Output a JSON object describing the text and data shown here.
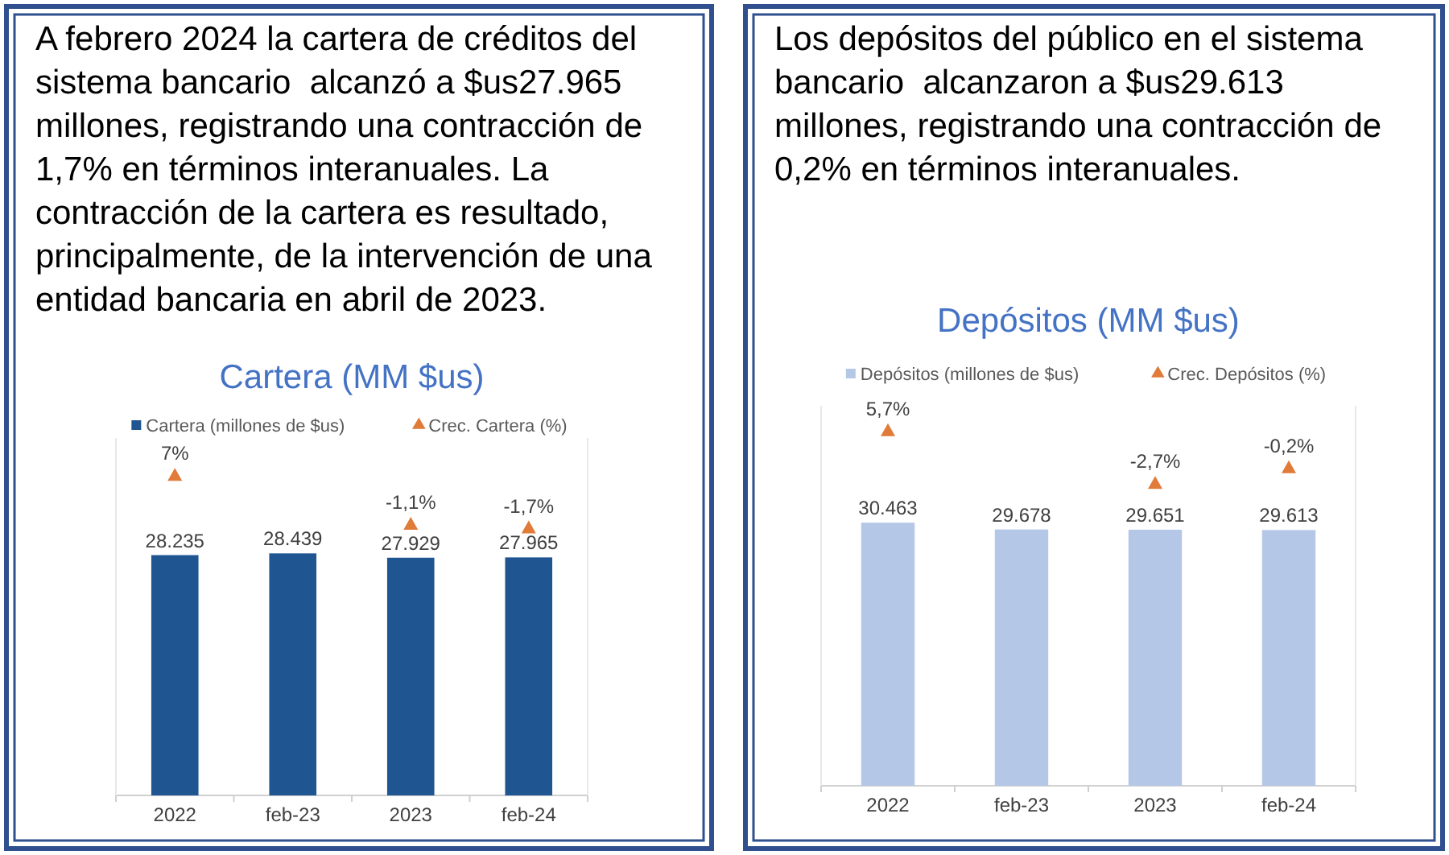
{
  "chart_data": [
    {
      "type": "bar",
      "title": "Cartera (MM $us)",
      "annotations": [
        "A febrero 2024 la cartera de créditos del sistema bancario  alcanzó a $us27.965 millones, registrando una contracción de 1,7% en términos interanuales. La contracción de la cartera es resultado, principalmente, de la intervención de una entidad bancaria en abril de 2023."
      ],
      "categories": [
        "2022",
        "feb-23",
        "2023",
        "feb-24"
      ],
      "legend": "top",
      "ylim": [
        0,
        42000
      ],
      "y2lim": [
        -46,
        13
      ],
      "tick_labels": "x",
      "series": [
        {
          "name": "Cartera (millones de $us)",
          "color": "#1f5591",
          "values": [
            28235,
            28439,
            27929,
            27965
          ],
          "value_labels": [
            "28.235",
            "28.439",
            "27.929",
            "27.965"
          ]
        },
        {
          "name": "Crec. Cartera (%)",
          "type": "scatter",
          "axis": "y2",
          "marker": "triangle",
          "color": "#e07b39",
          "values": [
            7,
            null,
            -1.1,
            -1.7
          ],
          "value_labels": [
            "7%",
            null,
            "-1,1%",
            "-1,7%"
          ]
        }
      ]
    },
    {
      "type": "bar",
      "title": "Depósitos (MM $us)",
      "annotations": [
        "Los depósitos del público en el sistema bancario  alcanzaron a $us29.613 millones, registrando una contracción de 0,2% en términos interanuales."
      ],
      "categories": [
        "2022",
        "feb-23",
        "2023",
        "feb-24"
      ],
      "legend": "top",
      "ylim": [
        0,
        44000
      ],
      "y2lim": [
        -51,
        9.5
      ],
      "tick_labels": "x",
      "series": [
        {
          "name": "Depósitos  (millones de $us)",
          "color": "#b4c7e7",
          "values": [
            30463,
            29678,
            29651,
            29613
          ],
          "value_labels": [
            "30.463",
            "29.678",
            "29.651",
            "29.613"
          ]
        },
        {
          "name": "Crec. Depósitos (%)",
          "type": "scatter",
          "axis": "y2",
          "marker": "triangle",
          "color": "#e07b39",
          "values": [
            5.7,
            null,
            -2.7,
            -0.2
          ],
          "value_labels": [
            "5,7%",
            null,
            "-2,7%",
            "-0,2%"
          ]
        }
      ]
    }
  ]
}
